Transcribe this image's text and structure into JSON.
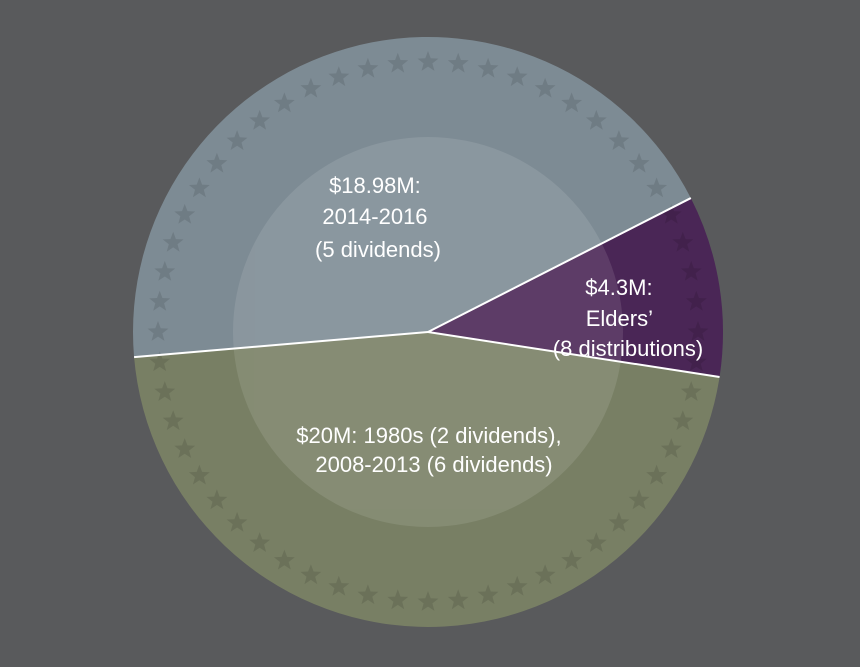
{
  "chart_data": {
    "type": "pie",
    "title": "",
    "unit": "$M",
    "slices": [
      {
        "name": "Elders",
        "value": 4.3,
        "color": "#4a2656",
        "label_lines": [
          "$4.3M:",
          "Elders’",
          "(8 distributions)"
        ]
      },
      {
        "name": "Dividends 1980s and 2008-2013",
        "value": 20,
        "color": "#787f64",
        "label_lines": [
          "$20M: 1980s (2 dividends),",
          "2008-2013 (6 dividends)"
        ]
      },
      {
        "name": "Dividends 2014-2016",
        "value": 18.98,
        "color": "#7d8b94",
        "label_lines": [
          "$18.98M:",
          "2014-2016",
          "(5 dividends)"
        ]
      }
    ],
    "start_angle_deg": -27,
    "direction": "clockwise",
    "watermark": "star-border-seal"
  }
}
